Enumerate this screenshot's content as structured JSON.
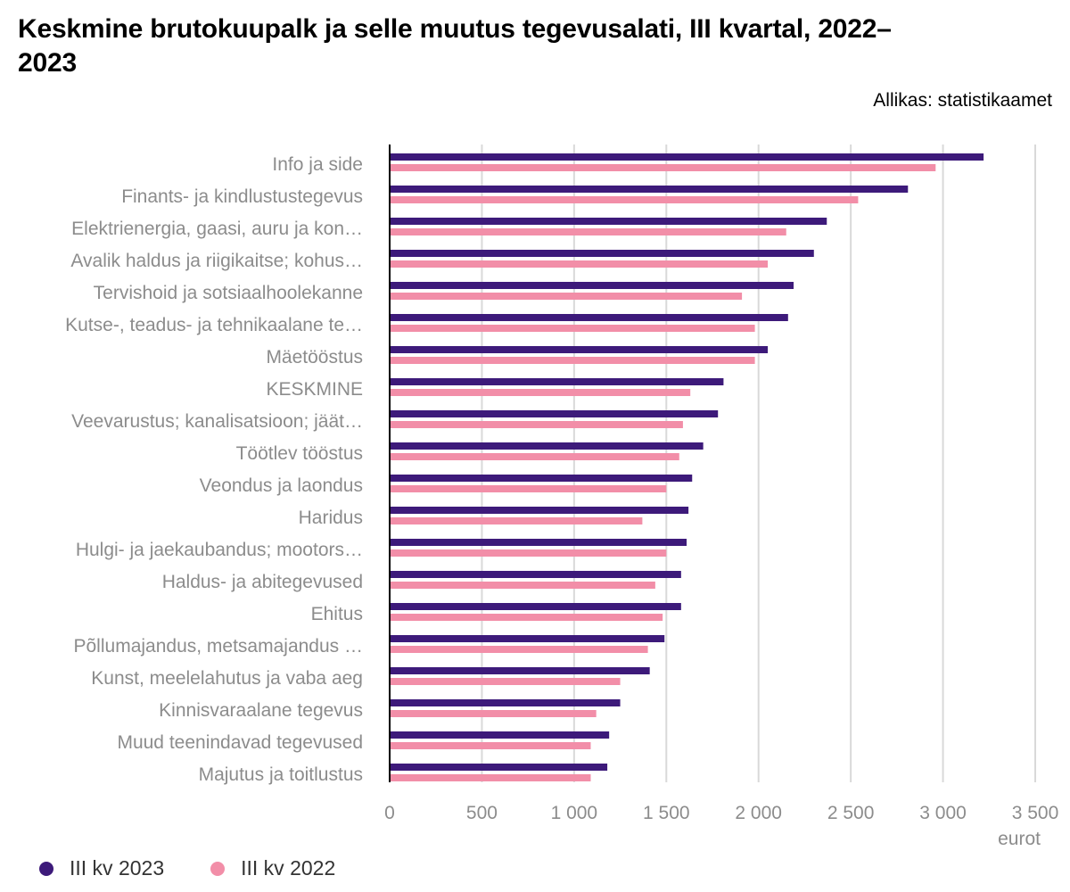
{
  "title": "Keskmine brutokuupalk ja selle muutus tegevusalati, III kvartal, 2022–2023",
  "source": "Allikas: statistikaamet",
  "colors": {
    "series2023": "#3d1a7a",
    "series2022": "#f28ea8",
    "grid": "#d9d9d9",
    "axis": "#000000"
  },
  "chart_data": {
    "type": "bar",
    "orientation": "horizontal",
    "categories": [
      "Info ja side",
      "Finants- ja kindlustustegevus",
      "Elektrienergia, gaasi, auru ja kon…",
      "Avalik haldus ja riigikaitse; kohus…",
      "Tervishoid ja sotsiaalhoolekanne",
      "Kutse-, teadus- ja tehnikaalane te…",
      "Mäetööstus",
      "KESKMINE",
      "Veevarustus; kanalisatsioon; jäät…",
      "Töötlev tööstus",
      "Veondus ja laondus",
      "Haridus",
      "Hulgi- ja jaekaubandus; mootors…",
      "Haldus- ja abitegevused",
      "Ehitus",
      "Põllumajandus, metsamajandus …",
      "Kunst, meelelahutus ja vaba aeg",
      "Kinnisvaraalane tegevus",
      "Muud teenindavad tegevused",
      "Majutus ja toitlustus"
    ],
    "series": [
      {
        "name": "III kv 2023",
        "color": "#3d1a7a",
        "values": [
          3220,
          2810,
          2370,
          2300,
          2190,
          2160,
          2050,
          1810,
          1780,
          1700,
          1640,
          1620,
          1610,
          1580,
          1580,
          1490,
          1410,
          1250,
          1190,
          1180
        ]
      },
      {
        "name": "III kv 2022",
        "color": "#f28ea8",
        "values": [
          2960,
          2540,
          2150,
          2050,
          1910,
          1980,
          1980,
          1630,
          1590,
          1570,
          1500,
          1370,
          1500,
          1440,
          1480,
          1400,
          1250,
          1120,
          1090,
          1090
        ]
      }
    ],
    "xlim": [
      0,
      3500
    ],
    "xticks": [
      0,
      500,
      1000,
      1500,
      2000,
      2500,
      3000,
      3500
    ],
    "xtick_labels": [
      "0",
      "500",
      "1 000",
      "1 500",
      "2 000",
      "2 500",
      "3 000",
      "3 500"
    ],
    "xunit": "eurot",
    "grid": true,
    "legend_position": "bottom-left"
  }
}
